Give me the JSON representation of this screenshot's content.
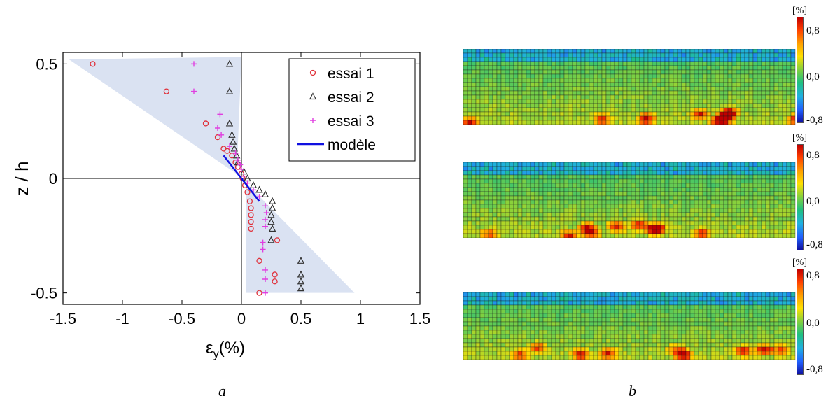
{
  "chart_data": {
    "type": "scatter",
    "xlabel_main": "ε",
    "xlabel_sub": "y",
    "xlabel_unit": "(%)",
    "ylabel": "z / h",
    "xlim": [
      -1.5,
      1.5
    ],
    "ylim": [
      -0.55,
      0.55
    ],
    "xticks": [
      -1.5,
      -1,
      -0.5,
      0,
      0.5,
      1,
      1.5
    ],
    "xtick_labels": [
      "-1.5",
      "-1",
      "-0.5",
      "0",
      "0.5",
      "1",
      "1.5"
    ],
    "yticks": [
      0.5,
      0,
      -0.5
    ],
    "ytick_labels": [
      "0.5",
      "0",
      "-0.5"
    ],
    "zero_lines": true,
    "legend_position": "top-right",
    "shaded_regions": [
      {
        "points": [
          [
            -1.45,
            0.52
          ],
          [
            0.0,
            0.53
          ],
          [
            -0.04,
            0.02
          ]
        ],
        "color": "#cdd8ee"
      },
      {
        "points": [
          [
            0.04,
            -0.02
          ],
          [
            0.04,
            -0.5
          ],
          [
            0.95,
            -0.5
          ]
        ],
        "color": "#cdd8ee"
      }
    ],
    "series": [
      {
        "name": "essai 1",
        "marker": "circle",
        "color": "#e0303a",
        "points": [
          [
            -1.25,
            0.5
          ],
          [
            -0.63,
            0.38
          ],
          [
            -0.3,
            0.24
          ],
          [
            -0.2,
            0.18
          ],
          [
            -0.15,
            0.13
          ],
          [
            -0.12,
            0.12
          ],
          [
            -0.08,
            0.1
          ],
          [
            -0.05,
            0.07
          ],
          [
            -0.03,
            0.05
          ],
          [
            0.0,
            0.02
          ],
          [
            0.01,
            0.0
          ],
          [
            0.03,
            -0.03
          ],
          [
            0.05,
            -0.06
          ],
          [
            0.07,
            -0.1
          ],
          [
            0.08,
            -0.13
          ],
          [
            0.08,
            -0.16
          ],
          [
            0.08,
            -0.19
          ],
          [
            0.08,
            -0.22
          ],
          [
            0.3,
            -0.27
          ],
          [
            0.15,
            -0.36
          ],
          [
            0.28,
            -0.42
          ],
          [
            0.28,
            -0.45
          ],
          [
            0.15,
            -0.5
          ]
        ]
      },
      {
        "name": "essai 2",
        "marker": "triangle",
        "color": "#333333",
        "points": [
          [
            -0.1,
            0.5
          ],
          [
            -0.1,
            0.38
          ],
          [
            -0.1,
            0.24
          ],
          [
            -0.08,
            0.19
          ],
          [
            -0.07,
            0.16
          ],
          [
            -0.06,
            0.13
          ],
          [
            -0.04,
            0.1
          ],
          [
            -0.03,
            0.07
          ],
          [
            0.02,
            0.03
          ],
          [
            0.05,
            0.0
          ],
          [
            0.1,
            -0.03
          ],
          [
            0.15,
            -0.05
          ],
          [
            0.2,
            -0.07
          ],
          [
            0.26,
            -0.1
          ],
          [
            0.26,
            -0.13
          ],
          [
            0.25,
            -0.16
          ],
          [
            0.25,
            -0.19
          ],
          [
            0.26,
            -0.22
          ],
          [
            0.25,
            -0.27
          ],
          [
            0.5,
            -0.36
          ],
          [
            0.5,
            -0.42
          ],
          [
            0.5,
            -0.45
          ],
          [
            0.5,
            -0.48
          ]
        ]
      },
      {
        "name": "essai 3",
        "marker": "plus",
        "color": "#e03fe0",
        "points": [
          [
            -0.4,
            0.5
          ],
          [
            -0.4,
            0.38
          ],
          [
            -0.18,
            0.28
          ],
          [
            -0.2,
            0.22
          ],
          [
            -0.17,
            0.19
          ],
          [
            -0.1,
            0.14
          ],
          [
            -0.05,
            0.11
          ],
          [
            -0.03,
            0.08
          ],
          [
            -0.01,
            0.06
          ],
          [
            0.0,
            0.04
          ],
          [
            0.02,
            0.01
          ],
          [
            0.05,
            -0.02
          ],
          [
            0.1,
            -0.05
          ],
          [
            0.15,
            -0.08
          ],
          [
            0.2,
            -0.12
          ],
          [
            0.21,
            -0.15
          ],
          [
            0.2,
            -0.18
          ],
          [
            0.2,
            -0.21
          ],
          [
            0.18,
            -0.28
          ],
          [
            0.18,
            -0.31
          ],
          [
            0.2,
            -0.4
          ],
          [
            0.2,
            -0.44
          ],
          [
            0.2,
            -0.5
          ]
        ]
      },
      {
        "name": "modèle",
        "marker": "line",
        "color": "#1010e0",
        "points": [
          [
            -0.15,
            0.1
          ],
          [
            0.15,
            -0.1
          ]
        ]
      }
    ]
  },
  "captions": {
    "a": "a",
    "b": "b"
  },
  "colorbars": [
    {
      "unit": "[%]",
      "ticks": [
        "0,8",
        "0,0",
        "-0,8"
      ]
    },
    {
      "unit": "[%]",
      "ticks": [
        "0,8",
        "0,0",
        "-0,8"
      ]
    },
    {
      "unit": "[%]",
      "ticks": [
        "0,8",
        "0,0",
        "-0,8"
      ]
    }
  ],
  "colors": {
    "high": "#c00000",
    "mid": "#80d040",
    "low": "#1010a0",
    "grid": "#1a1a1a",
    "base_green": "#3db88a"
  }
}
